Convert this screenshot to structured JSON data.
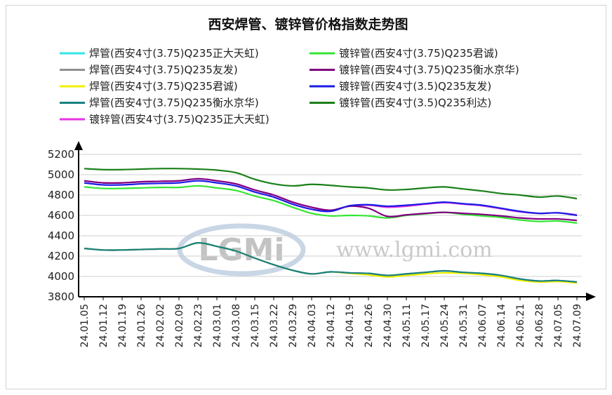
{
  "chart_data": {
    "type": "line",
    "title": "西安焊管、镀锌管价格指数走势图",
    "xlabel": "",
    "ylabel": "",
    "ylim": [
      3800,
      5200
    ],
    "yticks": [
      3800,
      4000,
      4200,
      4400,
      4600,
      4800,
      5000,
      5200
    ],
    "grid": "horizontal",
    "legend_position": "top",
    "x": [
      "24.01.05",
      "24.01.12",
      "24.01.19",
      "24.01.26",
      "24.02.02",
      "24.02.09",
      "24.02.23",
      "24.03.01",
      "24.03.08",
      "24.03.15",
      "24.03.22",
      "24.03.29",
      "24.04.03",
      "24.04.12",
      "24.04.19",
      "24.04.26",
      "24.04.30",
      "24.05.11",
      "24.05.17",
      "24.05.24",
      "24.05.31",
      "24.06.07",
      "24.06.14",
      "24.06.21",
      "24.06.28",
      "24.07.05",
      "24.07.09"
    ],
    "series": [
      {
        "name": "焊管(西安4寸(3.75)Q235正大天虹)",
        "color": "#33e6e6",
        "values": [
          4275,
          4260,
          4260,
          4265,
          4270,
          4275,
          4330,
          4295,
          4250,
          4180,
          4115,
          4060,
          4025,
          4045,
          4035,
          4030,
          4010,
          4025,
          4040,
          4055,
          4040,
          4030,
          4010,
          3975,
          3955,
          3960,
          3945
        ]
      },
      {
        "name": "焊管(西安4寸(3.75)Q235友发)",
        "color": "#909090",
        "values": [
          4275,
          4260,
          4260,
          4265,
          4270,
          4275,
          4330,
          4295,
          4250,
          4180,
          4115,
          4060,
          4025,
          4045,
          4035,
          4030,
          4010,
          4025,
          4040,
          4055,
          4040,
          4030,
          4010,
          3975,
          3955,
          3960,
          3945
        ]
      },
      {
        "name": "焊管(西安4寸(3.75)Q235君诚)",
        "color": "#f0f000",
        "values": [
          4275,
          4260,
          4260,
          4265,
          4270,
          4275,
          4330,
          4295,
          4250,
          4180,
          4115,
          4060,
          4025,
          4045,
          4030,
          4015,
          3995,
          4010,
          4025,
          4035,
          4030,
          4015,
          3995,
          3960,
          3945,
          3950,
          3935
        ]
      },
      {
        "name": "焊管(西安4寸(3.75)Q235衡水京华)",
        "color": "#1a8080",
        "values": [
          4275,
          4260,
          4260,
          4265,
          4270,
          4275,
          4330,
          4295,
          4250,
          4180,
          4115,
          4060,
          4025,
          4045,
          4035,
          4030,
          4010,
          4025,
          4040,
          4055,
          4040,
          4030,
          4010,
          3975,
          3955,
          3960,
          3945
        ]
      },
      {
        "name": "镀锌管(西安4寸(3.75)Q235正大天虹)",
        "color": "#e633e6",
        "values": [
          4940,
          4920,
          4920,
          4930,
          4935,
          4940,
          4960,
          4940,
          4910,
          4850,
          4800,
          4730,
          4680,
          4650,
          4690,
          4700,
          4680,
          4690,
          4710,
          4725,
          4710,
          4695,
          4665,
          4635,
          4620,
          4625,
          4605
        ]
      },
      {
        "name": "镀锌管(西安4寸(3.75)Q235君诚)",
        "color": "#33e633",
        "values": [
          4880,
          4865,
          4865,
          4870,
          4875,
          4875,
          4890,
          4870,
          4845,
          4790,
          4745,
          4680,
          4620,
          4595,
          4600,
          4595,
          4575,
          4600,
          4615,
          4630,
          4610,
          4595,
          4580,
          4555,
          4540,
          4545,
          4525
        ]
      },
      {
        "name": "镀锌管(西安4寸(3.75)Q235衡水京华)",
        "color": "#800080",
        "values": [
          4940,
          4920,
          4920,
          4930,
          4935,
          4940,
          4960,
          4940,
          4910,
          4850,
          4800,
          4730,
          4680,
          4650,
          4690,
          4670,
          4590,
          4605,
          4620,
          4630,
          4620,
          4610,
          4595,
          4575,
          4565,
          4565,
          4550
        ]
      },
      {
        "name": "镀锌管(西安4寸(3.5)Q235友发)",
        "color": "#1a1ae6",
        "values": [
          4920,
          4900,
          4900,
          4910,
          4915,
          4920,
          4940,
          4920,
          4890,
          4830,
          4780,
          4710,
          4660,
          4640,
          4695,
          4705,
          4690,
          4700,
          4715,
          4730,
          4715,
          4700,
          4670,
          4640,
          4620,
          4625,
          4600
        ]
      },
      {
        "name": "镀锌管(西安4寸(3.5)Q235利达)",
        "color": "#1a801a",
        "values": [
          5060,
          5050,
          5050,
          5055,
          5060,
          5060,
          5055,
          5045,
          5020,
          4955,
          4910,
          4890,
          4905,
          4895,
          4880,
          4870,
          4850,
          4855,
          4870,
          4880,
          4860,
          4840,
          4815,
          4800,
          4780,
          4790,
          4765
        ]
      }
    ]
  },
  "watermark": {
    "logo_text": "LGMi",
    "url_text": "www.lgmi.com"
  }
}
